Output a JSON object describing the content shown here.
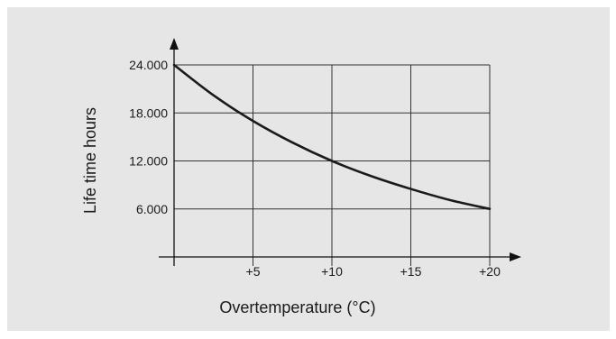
{
  "chart_data": {
    "type": "line",
    "xlabel": "Overtemperature (°C)",
    "ylabel": "Life time hours",
    "x_ticks": [
      "+5",
      "+10",
      "+15",
      "+20"
    ],
    "x_tick_values": [
      5,
      10,
      15,
      20
    ],
    "y_ticks": [
      "6.000",
      "12.000",
      "18.000",
      "24.000"
    ],
    "y_tick_values": [
      6000,
      12000,
      18000,
      24000
    ],
    "xlim": [
      0,
      20
    ],
    "ylim": [
      0,
      24000
    ],
    "grid": true,
    "series": [
      {
        "x": [
          0,
          2.5,
          5,
          7.5,
          10,
          12.5,
          15,
          17.5,
          20
        ],
        "values": [
          24000,
          20200,
          17000,
          14300,
          12000,
          10100,
          8500,
          7100,
          6000
        ]
      }
    ],
    "colors": {
      "background": "#e6e6e6",
      "line": "#1a1a1a",
      "grid": "#333333"
    }
  }
}
